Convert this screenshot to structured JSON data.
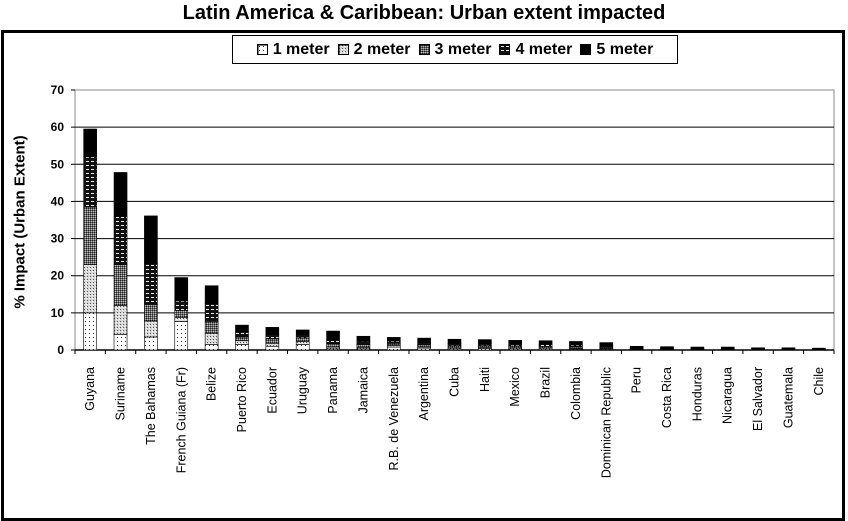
{
  "chart_data": {
    "type": "bar",
    "stacked": true,
    "title": "Latin America & Caribbean: Urban extent impacted",
    "xlabel": "",
    "ylabel": "% Impact (Urban Extent)",
    "ylim": [
      0,
      70
    ],
    "yticks": [
      0,
      10,
      20,
      30,
      40,
      50,
      60,
      70
    ],
    "grid": true,
    "legend_position": "top-center",
    "categories": [
      "Guyana",
      "Suriname",
      "The Bahamas",
      "French Guiana (Fr)",
      "Belize",
      "Puerto Rico",
      "Ecuador",
      "Uruguay",
      "Panama",
      "Jamaica",
      "R.B. de Venezuela",
      "Argentina",
      "Cuba",
      "Haiti",
      "Mexico",
      "Brazil",
      "Colombia",
      "Dominican Republic",
      "Peru",
      "Costa Rica",
      "Honduras",
      "Nicaragua",
      "El Salvador",
      "Guatemala",
      "Chile"
    ],
    "series": [
      {
        "name": "1 meter",
        "pattern": "sparse-dots",
        "values": [
          10,
          4.2,
          3.5,
          7.7,
          1.5,
          1.5,
          1.0,
          1.5,
          0.3,
          0.3,
          0.8,
          0.5,
          0.3,
          0.4,
          0.3,
          0.3,
          0.2,
          0.2,
          0.1,
          0.1,
          0.1,
          0.1,
          0.1,
          0.1,
          0.1
        ]
      },
      {
        "name": "2 meter",
        "pattern": "light-checker",
        "values": [
          13,
          7.8,
          4.3,
          1.0,
          3.0,
          1.0,
          0.8,
          0.8,
          0.5,
          0.4,
          0.4,
          0.3,
          0.3,
          0.3,
          0.3,
          0.3,
          0.2,
          0.2,
          0.1,
          0.1,
          0.1,
          0.1,
          0.1,
          0.1,
          0.1
        ]
      },
      {
        "name": "3 meter",
        "pattern": "dark-checker",
        "values": [
          15.5,
          11,
          4.5,
          2.0,
          3.2,
          1.0,
          1.2,
          1.0,
          0.9,
          0.8,
          0.6,
          0.6,
          0.6,
          0.5,
          0.5,
          0.4,
          0.4,
          0.3,
          0.1,
          0.1,
          0.1,
          0.1,
          0.1,
          0.1,
          0.1
        ]
      },
      {
        "name": "4 meter",
        "pattern": "dashes",
        "values": [
          13.5,
          13,
          11,
          2.5,
          4.8,
          1.5,
          1.2,
          0.8,
          1.0,
          0.8,
          0.6,
          0.7,
          0.6,
          0.5,
          0.5,
          0.5,
          0.5,
          0.3,
          0.2,
          0.1,
          0.1,
          0.1,
          0.1,
          0.1,
          0.1
        ]
      },
      {
        "name": "5 meter",
        "pattern": "solid",
        "values": [
          7.5,
          11.8,
          12.8,
          6.3,
          4.8,
          1.7,
          1.9,
          1.3,
          2.4,
          1.4,
          1.0,
          1.1,
          1.1,
          1.1,
          1.0,
          1.0,
          1.0,
          1.0,
          0.5,
          0.5,
          0.4,
          0.4,
          0.2,
          0.2,
          0.1
        ]
      }
    ]
  },
  "colors": {
    "background": "#ffffff",
    "ink": "#000000"
  }
}
